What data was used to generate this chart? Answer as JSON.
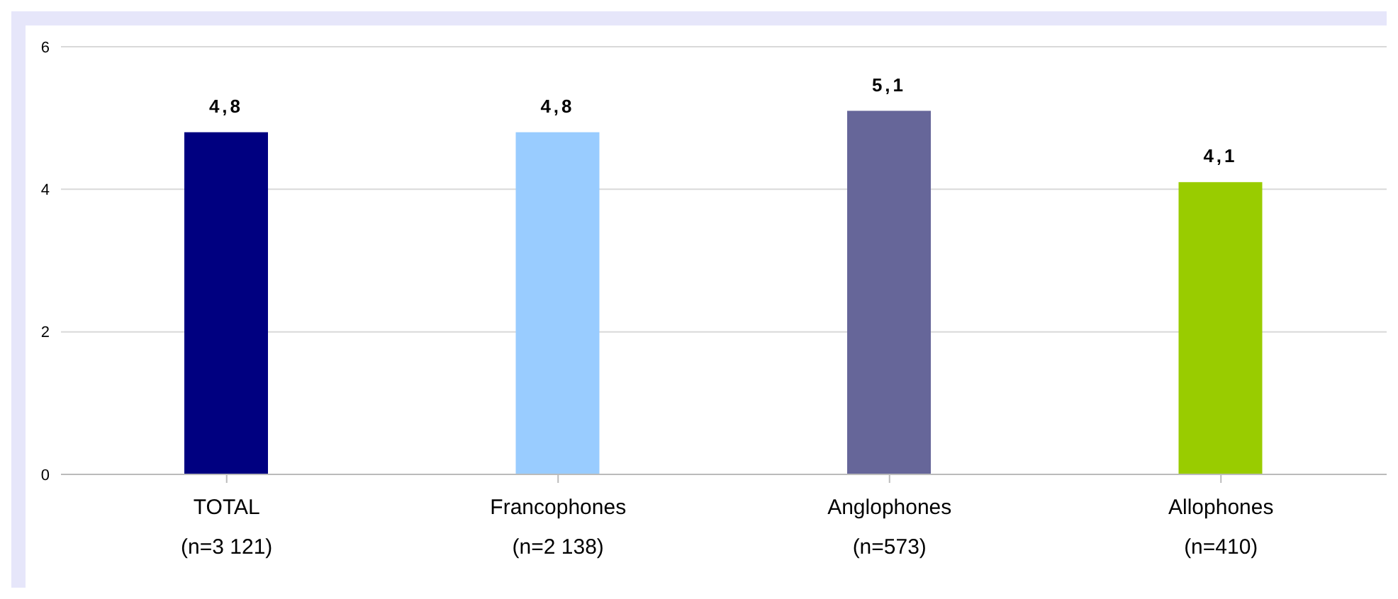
{
  "chart_data": {
    "type": "bar",
    "categories": [
      "TOTAL\n(n=3 121)",
      "Francophones\n(n=2 138)",
      "Anglophones\n(n=573)",
      "Allophones\n(n=410)"
    ],
    "values": [
      4.8,
      4.8,
      5.1,
      4.1
    ],
    "colors": [
      "#000080",
      "#99ccff",
      "#666699",
      "#99cc00"
    ],
    "value_labels": [
      "4,8",
      "4,8",
      "5,1",
      "4,1"
    ],
    "ylim": [
      0,
      6
    ],
    "yticks": [
      0,
      2,
      4,
      6
    ],
    "grid": "y"
  }
}
